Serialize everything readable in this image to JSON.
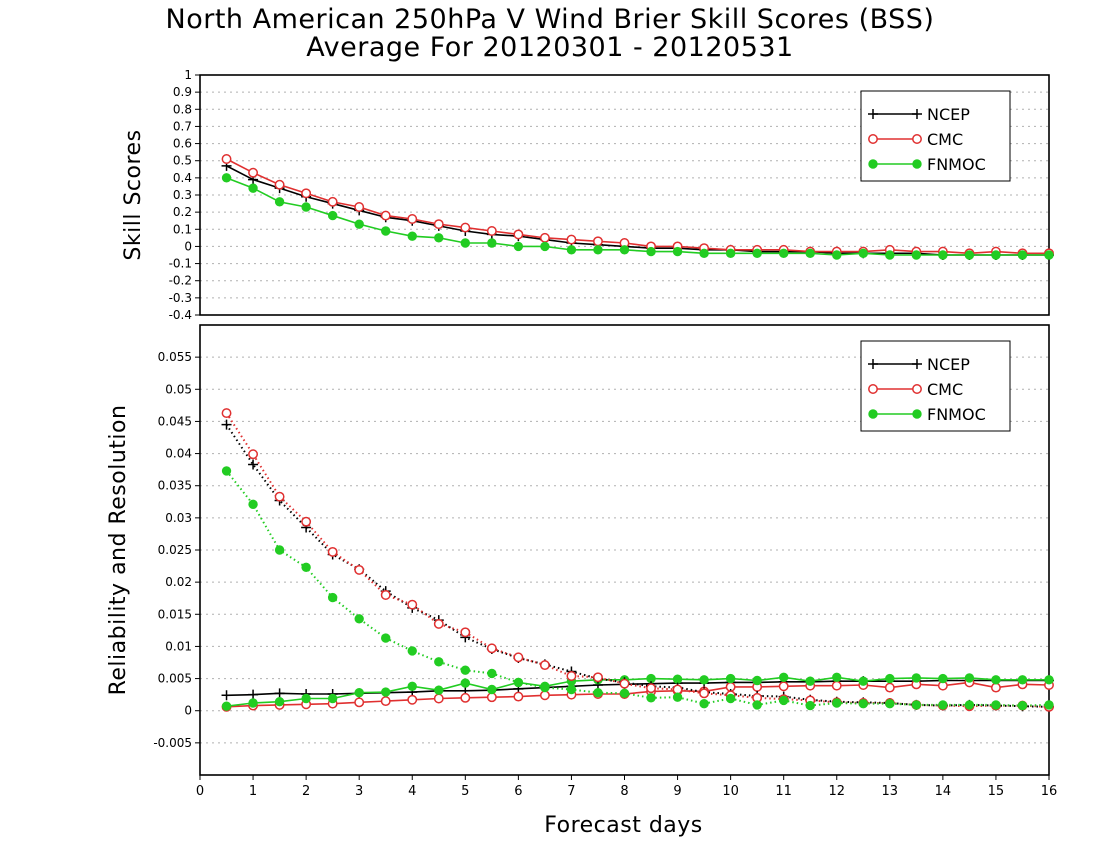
{
  "title": "North American 250hPa V Wind Brier Skill Scores (BSS)",
  "subtitle": "Average For 20120301 - 20120531",
  "colors": {
    "NCEP": "#000000",
    "CMC": "#e03030",
    "FNMOC": "#22cc22"
  },
  "chart_data": [
    {
      "type": "line",
      "ylabel": "Skill Scores",
      "xlabel": "",
      "xlim": [
        0,
        16
      ],
      "ylim": [
        -0.4,
        1
      ],
      "yticks": [
        -0.4,
        -0.3,
        -0.2,
        -0.1,
        0,
        0.1,
        0.2,
        0.3,
        0.4,
        0.5,
        0.6,
        0.7,
        0.8,
        0.9,
        1
      ],
      "ytick_labels": [
        "-0.4",
        "-0.3",
        "-0.2",
        "-0.1",
        "0",
        "0.1",
        "0.2",
        "0.3",
        "0.4",
        "0.5",
        "0.6",
        "0.7",
        "0.8",
        "0.9",
        "1"
      ],
      "grid": true,
      "legend_position": "top-right",
      "x": [
        0.5,
        1,
        1.5,
        2,
        2.5,
        3,
        3.5,
        4,
        4.5,
        5,
        5.5,
        6,
        6.5,
        7,
        7.5,
        8,
        8.5,
        9,
        9.5,
        10,
        10.5,
        11,
        11.5,
        12,
        12.5,
        13,
        13.5,
        14,
        14.5,
        15,
        15.5,
        16
      ],
      "series": [
        {
          "name": "NCEP",
          "style": "solid",
          "marker": "plus",
          "values": [
            0.47,
            0.39,
            0.34,
            0.29,
            0.25,
            0.21,
            0.17,
            0.15,
            0.12,
            0.09,
            0.07,
            0.06,
            0.04,
            0.02,
            0.01,
            0.0,
            -0.01,
            -0.01,
            -0.02,
            -0.02,
            -0.03,
            -0.03,
            -0.03,
            -0.04,
            -0.04,
            -0.04,
            -0.04,
            -0.05,
            -0.05,
            -0.05,
            -0.05,
            -0.05
          ]
        },
        {
          "name": "CMC",
          "style": "solid",
          "marker": "open-circle",
          "values": [
            0.51,
            0.43,
            0.36,
            0.31,
            0.26,
            0.23,
            0.18,
            0.16,
            0.13,
            0.11,
            0.09,
            0.07,
            0.05,
            0.04,
            0.03,
            0.02,
            0.0,
            0.0,
            -0.01,
            -0.02,
            -0.02,
            -0.02,
            -0.03,
            -0.03,
            -0.03,
            -0.02,
            -0.03,
            -0.03,
            -0.04,
            -0.03,
            -0.04,
            -0.04
          ]
        },
        {
          "name": "FNMOC",
          "style": "solid",
          "marker": "filled-circle",
          "values": [
            0.4,
            0.34,
            0.26,
            0.23,
            0.18,
            0.13,
            0.09,
            0.06,
            0.05,
            0.02,
            0.02,
            0.0,
            0.0,
            -0.02,
            -0.02,
            -0.02,
            -0.03,
            -0.03,
            -0.04,
            -0.04,
            -0.04,
            -0.04,
            -0.04,
            -0.05,
            -0.04,
            -0.05,
            -0.05,
            -0.05,
            -0.05,
            -0.05,
            -0.05,
            -0.05
          ]
        }
      ]
    },
    {
      "type": "line",
      "ylabel": "Reliability and Resolution",
      "xlabel": "Forecast days",
      "xlim": [
        0,
        16
      ],
      "xticks": [
        0,
        1,
        2,
        3,
        4,
        5,
        6,
        7,
        8,
        9,
        10,
        11,
        12,
        13,
        14,
        15,
        16
      ],
      "ylim": [
        -0.01,
        0.06
      ],
      "yticks": [
        -0.005,
        0,
        0.005,
        0.01,
        0.015,
        0.02,
        0.025,
        0.03,
        0.035,
        0.04,
        0.045,
        0.05,
        0.055
      ],
      "ytick_labels": [
        "-0.005",
        "0",
        "0.005",
        "0.01",
        "0.015",
        "0.02",
        "0.025",
        "0.03",
        "0.035",
        "0.04",
        "0.045",
        "0.05",
        "0.055"
      ],
      "grid": true,
      "legend_position": "top-right",
      "x": [
        0.5,
        1,
        1.5,
        2,
        2.5,
        3,
        3.5,
        4,
        4.5,
        5,
        5.5,
        6,
        6.5,
        7,
        7.5,
        8,
        8.5,
        9,
        9.5,
        10,
        10.5,
        11,
        11.5,
        12,
        12.5,
        13,
        13.5,
        14,
        14.5,
        15,
        15.5,
        16
      ],
      "series": [
        {
          "name": "NCEP",
          "metric": "reliability",
          "style": "solid",
          "marker": "plus",
          "values": [
            0.0024,
            0.0025,
            0.0027,
            0.0026,
            0.0026,
            0.0027,
            0.0028,
            0.0029,
            0.0031,
            0.0031,
            0.0032,
            0.0034,
            0.0036,
            0.0038,
            0.004,
            0.0041,
            0.0042,
            0.0043,
            0.0043,
            0.0044,
            0.0044,
            0.0045,
            0.0045,
            0.0046,
            0.0046,
            0.0046,
            0.0046,
            0.0047,
            0.0047,
            0.0047,
            0.0047,
            0.0047
          ]
        },
        {
          "name": "CMC",
          "metric": "reliability",
          "style": "solid",
          "marker": "open-circle",
          "values": [
            0.0006,
            0.0008,
            0.0009,
            0.001,
            0.0011,
            0.0013,
            0.0015,
            0.0017,
            0.0019,
            0.002,
            0.0021,
            0.0022,
            0.0024,
            0.0025,
            0.0026,
            0.0026,
            0.003,
            0.0031,
            0.003,
            0.0037,
            0.0037,
            0.0038,
            0.0039,
            0.0039,
            0.004,
            0.0036,
            0.0041,
            0.0039,
            0.0044,
            0.0036,
            0.0041,
            0.004
          ]
        },
        {
          "name": "FNMOC",
          "metric": "reliability",
          "style": "solid",
          "marker": "filled-circle",
          "values": [
            0.0007,
            0.0012,
            0.0014,
            0.0019,
            0.0019,
            0.0028,
            0.0029,
            0.0038,
            0.0032,
            0.0043,
            0.0033,
            0.0044,
            0.0038,
            0.0046,
            0.0048,
            0.0048,
            0.005,
            0.0049,
            0.0048,
            0.005,
            0.0047,
            0.0052,
            0.0046,
            0.0052,
            0.0046,
            0.005,
            0.0051,
            0.005,
            0.0051,
            0.0048,
            0.0048,
            0.0048
          ]
        },
        {
          "name": "NCEP",
          "metric": "resolution",
          "style": "dotted",
          "marker": "plus",
          "values": [
            0.0445,
            0.0383,
            0.0327,
            0.0285,
            0.0243,
            0.022,
            0.0186,
            0.016,
            0.0141,
            0.0114,
            0.0096,
            0.0082,
            0.0072,
            0.0061,
            0.005,
            0.0044,
            0.0038,
            0.0036,
            0.0029,
            0.0026,
            0.0023,
            0.0022,
            0.0017,
            0.0014,
            0.0013,
            0.0012,
            0.0009,
            0.0008,
            0.0009,
            0.0008,
            0.0007,
            0.0006
          ]
        },
        {
          "name": "CMC",
          "metric": "resolution",
          "style": "dotted",
          "marker": "open-circle",
          "values": [
            0.0463,
            0.0399,
            0.0333,
            0.0294,
            0.0247,
            0.0219,
            0.018,
            0.0165,
            0.0135,
            0.0122,
            0.0097,
            0.0083,
            0.0071,
            0.0054,
            0.0052,
            0.0042,
            0.0035,
            0.0033,
            0.0027,
            0.0024,
            0.002,
            0.0018,
            0.0016,
            0.0013,
            0.0012,
            0.0012,
            0.0009,
            0.0008,
            0.0007,
            0.0008,
            0.0008,
            0.0006
          ]
        },
        {
          "name": "FNMOC",
          "metric": "resolution",
          "style": "dotted",
          "marker": "filled-circle",
          "values": [
            0.0373,
            0.0321,
            0.025,
            0.0223,
            0.0176,
            0.0143,
            0.0113,
            0.0093,
            0.0076,
            0.0063,
            0.0058,
            0.0044,
            0.0036,
            0.0033,
            0.0028,
            0.0027,
            0.002,
            0.0021,
            0.0011,
            0.0019,
            0.0009,
            0.0016,
            0.0008,
            0.0012,
            0.0011,
            0.0011,
            0.0009,
            0.0009,
            0.0009,
            0.0009,
            0.0008,
            0.0009
          ]
        }
      ]
    }
  ]
}
